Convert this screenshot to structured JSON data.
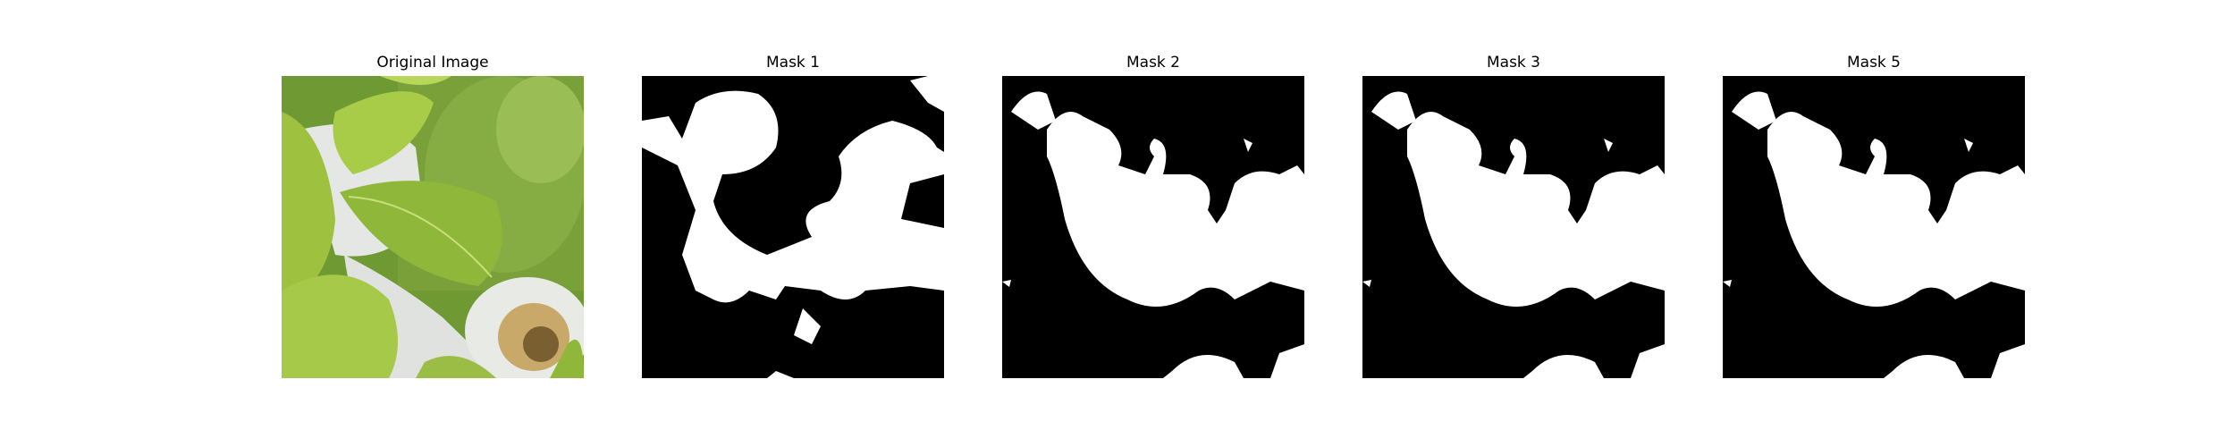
{
  "panels": [
    {
      "title": "Original Image",
      "kind": "photo",
      "subject": "leaves-photo"
    },
    {
      "title": "Mask 1",
      "kind": "mask",
      "fg": "#ffffff",
      "bg": "#000000"
    },
    {
      "title": "Mask 2",
      "kind": "mask",
      "fg": "#ffffff",
      "bg": "#000000"
    },
    {
      "title": "Mask 3",
      "kind": "mask",
      "fg": "#ffffff",
      "bg": "#000000"
    },
    {
      "title": "Mask 5",
      "kind": "mask",
      "fg": "#ffffff",
      "bg": "#000000"
    }
  ],
  "colors": {
    "leaf_light": "#b8d65a",
    "leaf_mid": "#8fb83a",
    "leaf_dark": "#5e8a24",
    "pot": "#e4e7e3",
    "background": "#ffffff"
  }
}
